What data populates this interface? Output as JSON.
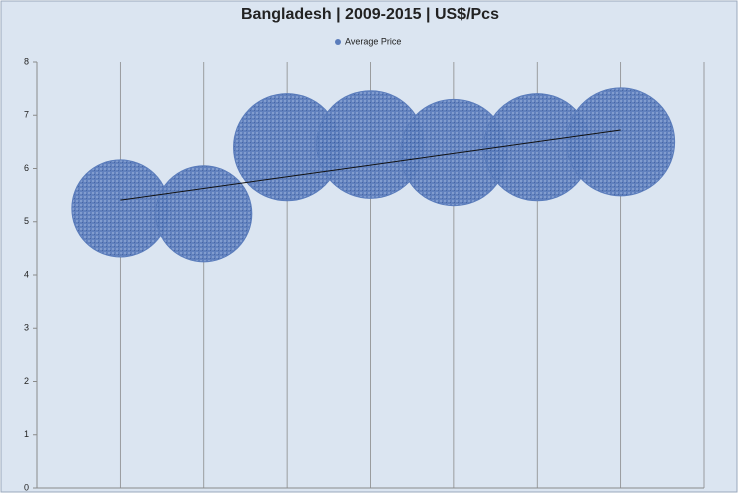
{
  "chart_data": {
    "type": "bubble",
    "title": "Bangladesh | 2009-2015 | US$/Pcs",
    "x": [
      1,
      2,
      3,
      4,
      5,
      6,
      7
    ],
    "series": [
      {
        "name": "Average Price",
        "color": "#5a7cbb",
        "values": [
          5.25,
          5.15,
          6.4,
          6.45,
          6.3,
          6.4,
          6.5
        ],
        "sizes": [
          5.25,
          5.15,
          6.4,
          6.45,
          6.3,
          6.4,
          6.5
        ]
      }
    ],
    "xlim": [
      0,
      8
    ],
    "xticks": [
      1,
      2,
      3,
      4,
      5,
      6,
      7,
      8
    ],
    "ylim": [
      0,
      8
    ],
    "yticks": [
      0,
      1,
      2,
      3,
      4,
      5,
      6,
      7,
      8
    ],
    "grid": true,
    "trendline": true,
    "legend": "top"
  }
}
